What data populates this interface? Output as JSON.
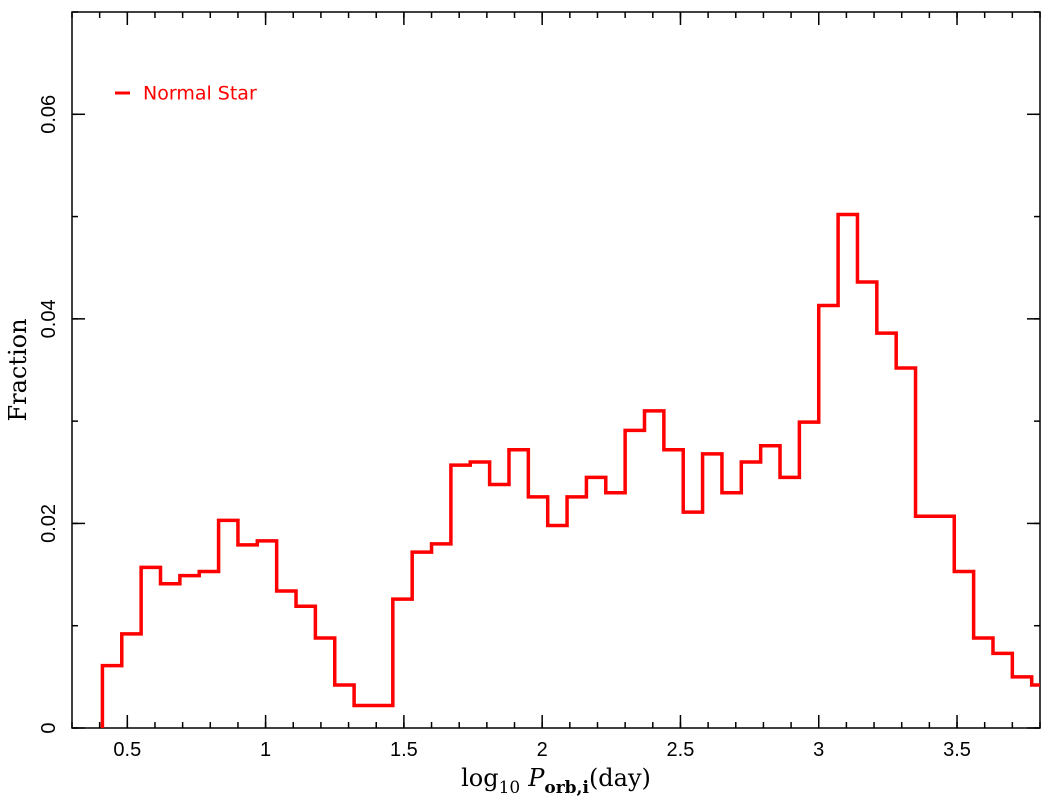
{
  "chart_data": {
    "type": "bar",
    "subtype": "step-histogram",
    "xlabel": {
      "prefix": "log",
      "prefix_sub": "10",
      "symbol": "P",
      "symbol_sub": "orb,i",
      "suffix": "(day)"
    },
    "ylabel": "Fraction",
    "xlim": [
      0.3,
      3.8
    ],
    "ylim": [
      0,
      0.07
    ],
    "xticks": [
      0.5,
      1,
      1.5,
      2,
      2.5,
      3,
      3.5
    ],
    "xtick_labels": [
      "0.5",
      "1",
      "1.5",
      "2",
      "2.5",
      "3",
      "3.5"
    ],
    "yticks": [
      0,
      0.02,
      0.04,
      0.06
    ],
    "ytick_labels": [
      "0",
      "0.02",
      "0.04",
      "0.06"
    ],
    "legend_position": "top-left",
    "grid": false,
    "series": [
      {
        "name": "Normal Star",
        "color": "#ff0000",
        "bin_width": 0.07,
        "x_start": 0.41,
        "values": [
          0.0061,
          0.0092,
          0.0157,
          0.0141,
          0.0149,
          0.0153,
          0.0203,
          0.0179,
          0.0183,
          0.0134,
          0.0119,
          0.0088,
          0.0042,
          0.0022,
          0.0022,
          0.0126,
          0.0172,
          0.018,
          0.0257,
          0.026,
          0.0238,
          0.0272,
          0.0226,
          0.0198,
          0.0226,
          0.0245,
          0.023,
          0.0291,
          0.031,
          0.0272,
          0.0211,
          0.0268,
          0.023,
          0.026,
          0.0276,
          0.0245,
          0.0299,
          0.0413,
          0.0502,
          0.0436,
          0.0386,
          0.0352,
          0.0207,
          0.0207,
          0.0153,
          0.0088,
          0.0073,
          0.005,
          0.0042
        ]
      }
    ]
  }
}
